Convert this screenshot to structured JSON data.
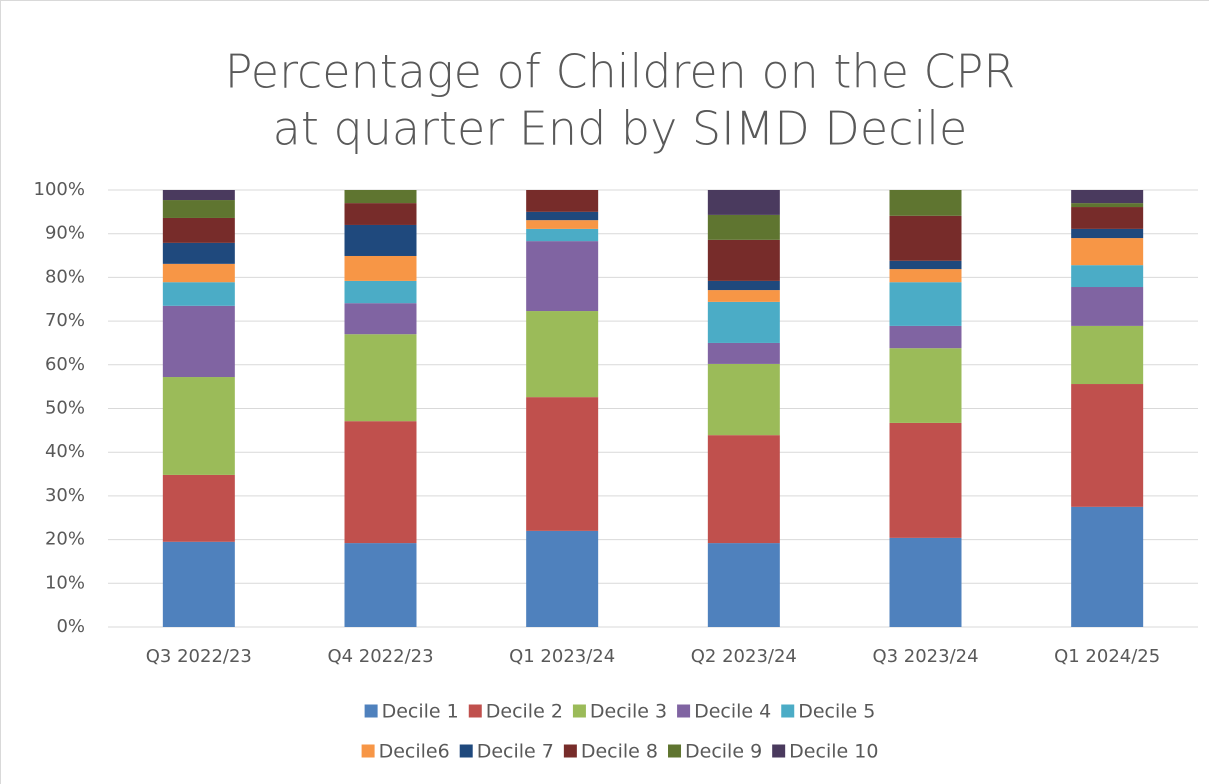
{
  "chart_data": {
    "type": "stacked_bar",
    "title": [
      "Percentage of Children on the CPR",
      "at quarter End by SIMD Decile"
    ],
    "categories": [
      "Q3 2022/23",
      "Q4 2022/23",
      "Q1 2023/24",
      "Q2 2023/24",
      "Q3 2023/24",
      "Q1 2024/25"
    ],
    "series": [
      {
        "name": "Decile 1",
        "color": "#4f81bd",
        "values": [
          19.5,
          19.2,
          22.0,
          19.2,
          20.4,
          27.5
        ]
      },
      {
        "name": "Decile 2",
        "color": "#c0504d",
        "values": [
          15.3,
          27.9,
          30.6,
          24.7,
          26.3,
          28.1
        ]
      },
      {
        "name": "Decile 3",
        "color": "#9bbb59",
        "values": [
          22.4,
          19.9,
          19.7,
          16.3,
          17.1,
          13.3
        ]
      },
      {
        "name": "Decile 4",
        "color": "#8064a2",
        "values": [
          16.3,
          7.1,
          16.0,
          4.8,
          5.1,
          8.9
        ]
      },
      {
        "name": "Decile 5",
        "color": "#4bacc6",
        "values": [
          5.4,
          5.1,
          2.8,
          9.4,
          10.0,
          5.0
        ]
      },
      {
        "name": "Decile6",
        "color": "#f79646",
        "values": [
          4.2,
          5.7,
          2.0,
          2.7,
          3.0,
          6.2
        ]
      },
      {
        "name": "Decile 7",
        "color": "#1f497d",
        "values": [
          4.8,
          7.1,
          1.9,
          2.1,
          1.9,
          2.1
        ]
      },
      {
        "name": "Decile 8",
        "color": "#772c2a",
        "values": [
          5.7,
          5.0,
          5.0,
          9.4,
          10.3,
          5.0
        ]
      },
      {
        "name": "Decile 9",
        "color": "#5f7530",
        "values": [
          4.1,
          3.0,
          0,
          5.7,
          5.9,
          0.9
        ]
      },
      {
        "name": "Decile 10",
        "color": "#4a3a5e",
        "values": [
          2.3,
          0,
          0,
          5.7,
          0,
          3.0
        ]
      }
    ],
    "ylim": [
      0,
      100
    ],
    "yticks": [
      {
        "value": 0,
        "label": "0%"
      },
      {
        "value": 10,
        "label": "10%"
      },
      {
        "value": 20,
        "label": "20%"
      },
      {
        "value": 30,
        "label": "30%"
      },
      {
        "value": 40,
        "label": "40%"
      },
      {
        "value": 50,
        "label": "50%"
      },
      {
        "value": 60,
        "label": "60%"
      },
      {
        "value": 70,
        "label": "70%"
      },
      {
        "value": 80,
        "label": "80%"
      },
      {
        "value": 90,
        "label": "90%"
      },
      {
        "value": 100,
        "label": "100%"
      }
    ],
    "grid": true,
    "legend": "bottom"
  }
}
